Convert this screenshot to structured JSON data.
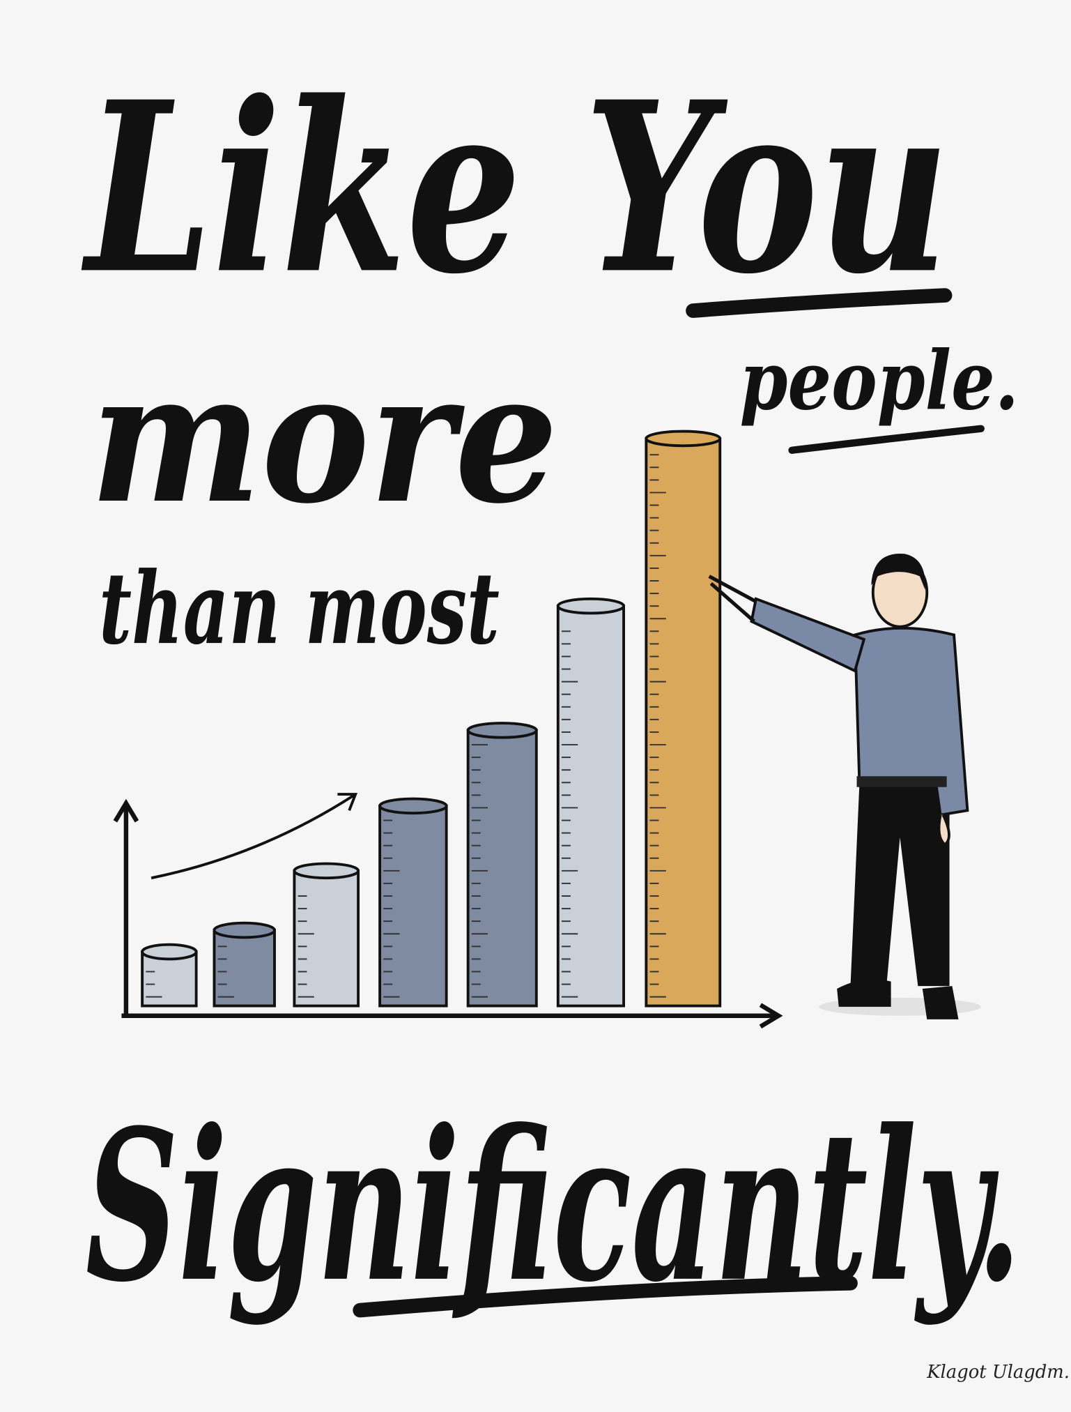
{
  "headline": {
    "line1": "Like You",
    "line2": "more",
    "line3": "than most",
    "line4": "people.",
    "line5": "Significantly."
  },
  "signature": "Klagot Ulagdm.",
  "illustration": {
    "bars": [
      {
        "level": 1.0,
        "color": "#c9d0d8"
      },
      {
        "level": 1.4,
        "color": "#7f8ba0"
      },
      {
        "level": 2.5,
        "color": "#c9d0d8"
      },
      {
        "level": 3.7,
        "color": "#7f8ba0"
      },
      {
        "level": 5.1,
        "color": "#7f8ba0"
      },
      {
        "level": 7.4,
        "color": "#c9d0d8"
      },
      {
        "level": 10.5,
        "color": "#d9a85a"
      }
    ],
    "colors": {
      "ink": "#111111",
      "background": "#f7f6f6",
      "shirt": "#7a89a6",
      "highlight": "#d9a85a"
    }
  }
}
